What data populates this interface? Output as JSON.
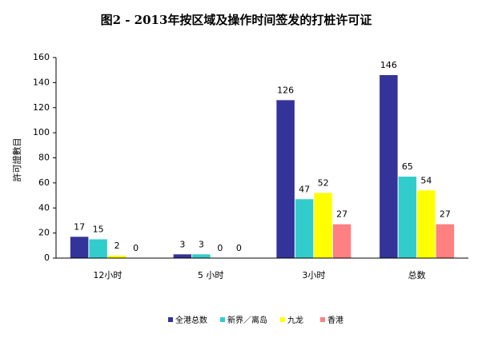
{
  "chart_data": {
    "type": "bar",
    "title": "图2 - 2013年按区域及操作时间签发的打桩许可证",
    "y_label": "許可證數目",
    "categories": [
      "12小时",
      "5 小时",
      "3小时",
      "总数"
    ],
    "series": [
      {
        "name": "全港总数",
        "color": "#333399",
        "values": [
          17,
          3,
          126,
          146
        ]
      },
      {
        "name": "新界／离岛",
        "color": "#33CCCC",
        "values": [
          15,
          3,
          47,
          65
        ]
      },
      {
        "name": "九龙",
        "color": "#FFFF00",
        "values": [
          2,
          0,
          52,
          54
        ]
      },
      {
        "name": "香港",
        "color": "#FF8080",
        "values": [
          0,
          0,
          27,
          27
        ]
      }
    ],
    "ylim": [
      0,
      160
    ],
    "yticks": [
      0,
      20,
      40,
      60,
      80,
      100,
      120,
      140,
      160
    ],
    "grid": false,
    "legend": "bottom"
  }
}
